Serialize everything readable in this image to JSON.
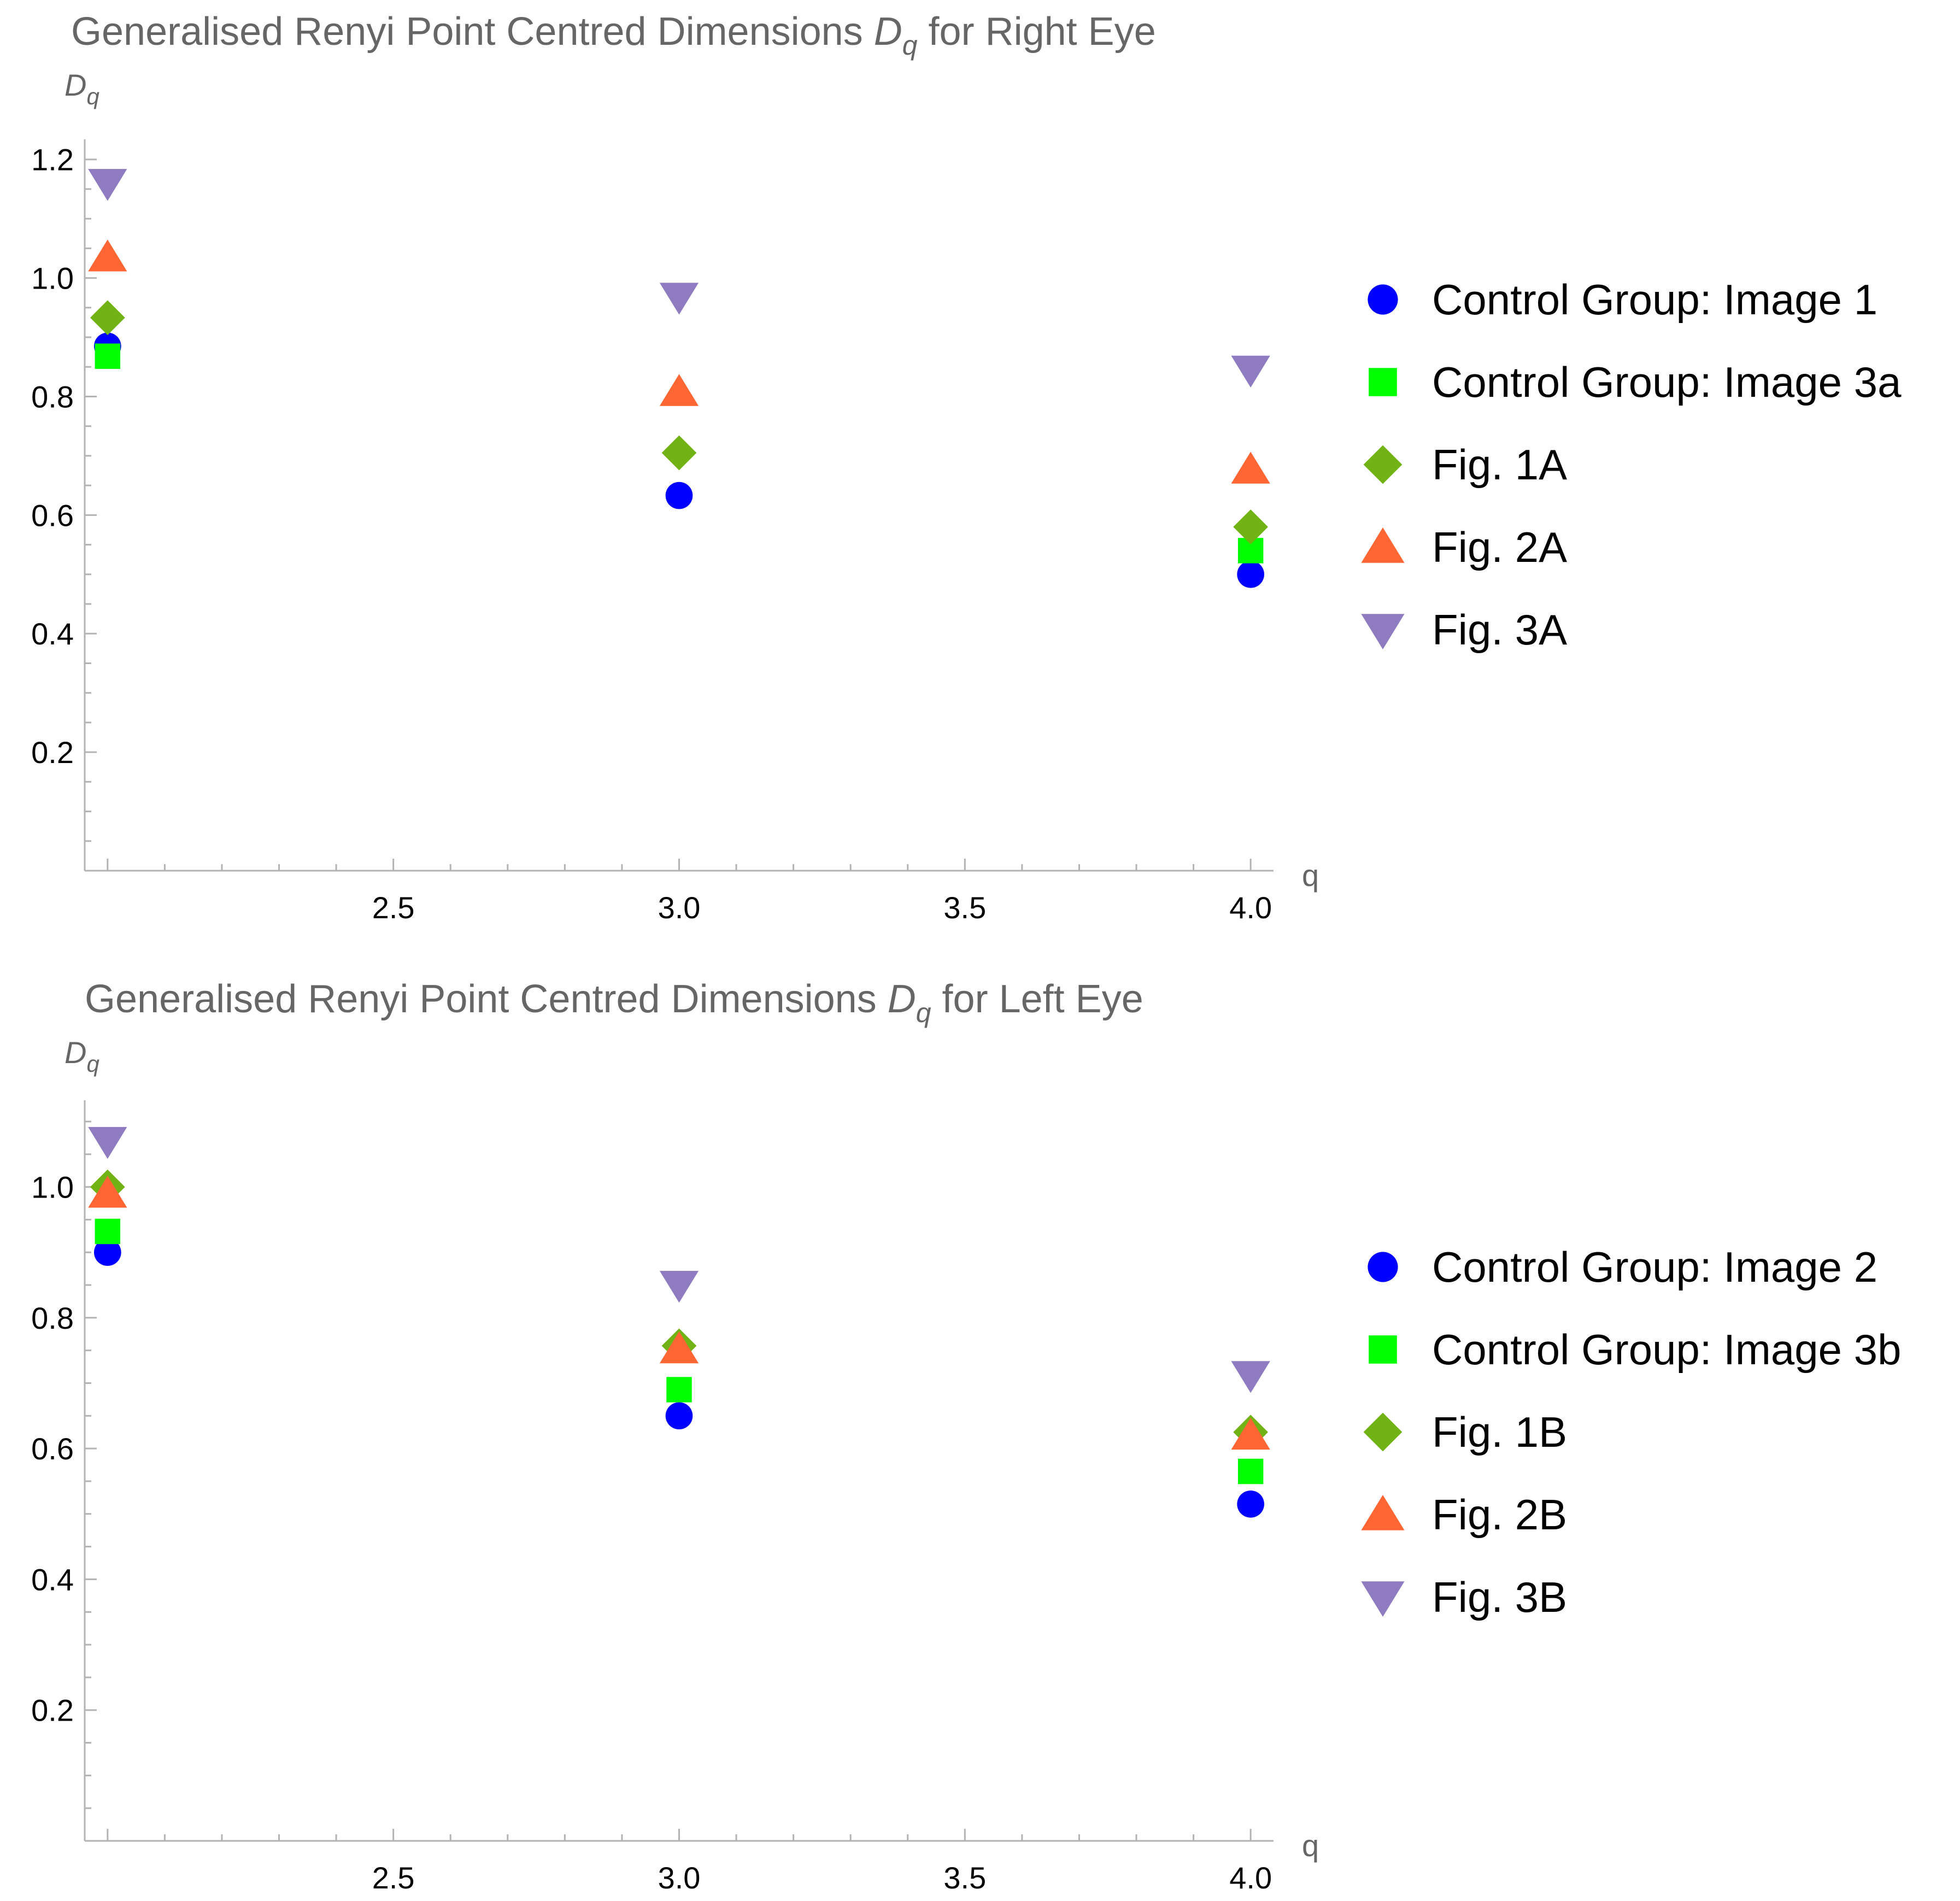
{
  "chart_data": [
    {
      "type": "scatter",
      "title": {
        "prefix": "Generalised Renyi Point Centred Dimensions ",
        "symbol": "D",
        "subscript": "q",
        "suffix": " for Right Eye"
      },
      "ylabel": {
        "symbol": "D",
        "subscript": "q"
      },
      "xlabel": "q",
      "xlim": [
        1.96,
        4.04
      ],
      "ylim": [
        0,
        1.22
      ],
      "xticks": [
        2.5,
        3.0,
        3.5,
        4.0
      ],
      "xtick_labels": [
        "2.5",
        "3.0",
        "3.5",
        "4.0"
      ],
      "yticks": [
        0.2,
        0.4,
        0.6,
        0.8,
        1.0,
        1.2
      ],
      "ytick_labels": [
        "0.2",
        "0.4",
        "0.6",
        "0.8",
        "1.0",
        "1.2"
      ],
      "grid": false,
      "legend_position": "right",
      "series": [
        {
          "name": "Control Group: Image 1",
          "marker": "circle",
          "color": "#0000ff",
          "x": [
            2,
            3,
            4
          ],
          "y": [
            0.885,
            0.633,
            0.5
          ]
        },
        {
          "name": "Control Group: Image 3a",
          "marker": "square",
          "color": "#00ff00",
          "x": [
            2,
            3,
            4
          ],
          "y": [
            0.868,
            null,
            0.54
          ]
        },
        {
          "name": "Fig. 1A",
          "marker": "diamond",
          "color": "#71b214",
          "x": [
            2,
            3,
            4
          ],
          "y": [
            0.933,
            0.705,
            0.58
          ]
        },
        {
          "name": "Fig. 2A",
          "marker": "triangle-up",
          "color": "#ff6633",
          "x": [
            2,
            3,
            4
          ],
          "y": [
            1.035,
            0.808,
            0.677
          ]
        },
        {
          "name": "Fig. 3A",
          "marker": "triangle-down",
          "color": "#8f7cc0",
          "x": [
            2,
            3,
            4
          ],
          "y": [
            1.16,
            0.968,
            0.845
          ]
        }
      ]
    },
    {
      "type": "scatter",
      "title": {
        "prefix": "Generalised Renyi Point Centred Dimensions ",
        "symbol": "D",
        "subscript": "q",
        "suffix": " for Left Eye"
      },
      "ylabel": {
        "symbol": "D",
        "subscript": "q"
      },
      "xlabel": "q",
      "xlim": [
        1.96,
        4.04
      ],
      "ylim": [
        0,
        1.12
      ],
      "xticks": [
        2.5,
        3.0,
        3.5,
        4.0
      ],
      "xtick_labels": [
        "2.5",
        "3.0",
        "3.5",
        "4.0"
      ],
      "yticks": [
        0.2,
        0.4,
        0.6,
        0.8,
        1.0
      ],
      "ytick_labels": [
        "0.2",
        "0.4",
        "0.6",
        "0.8",
        "1.0"
      ],
      "grid": false,
      "legend_position": "right",
      "series": [
        {
          "name": "Control Group: Image 2",
          "marker": "circle",
          "color": "#0000ff",
          "x": [
            2,
            3,
            4
          ],
          "y": [
            0.9,
            0.65,
            0.515
          ]
        },
        {
          "name": "Control Group: Image 3b",
          "marker": "square",
          "color": "#00ff00",
          "x": [
            2,
            3,
            4
          ],
          "y": [
            0.932,
            0.69,
            0.565
          ]
        },
        {
          "name": "Fig. 1B",
          "marker": "diamond",
          "color": "#71b214",
          "x": [
            2,
            3,
            4
          ],
          "y": [
            1.0,
            0.757,
            0.625
          ]
        },
        {
          "name": "Fig. 2B",
          "marker": "triangle-up",
          "color": "#ff6633",
          "x": [
            2,
            3,
            4
          ],
          "y": [
            0.99,
            0.752,
            0.62
          ]
        },
        {
          "name": "Fig. 3B",
          "marker": "triangle-down",
          "color": "#8f7cc0",
          "x": [
            2,
            3,
            4
          ],
          "y": [
            1.07,
            0.85,
            0.712
          ]
        }
      ]
    }
  ]
}
